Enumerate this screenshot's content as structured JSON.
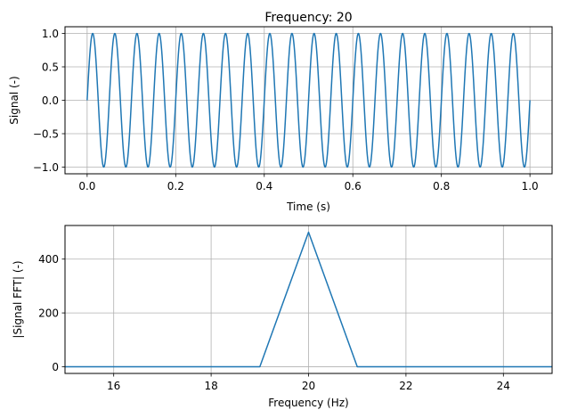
{
  "chart_data": [
    {
      "type": "line",
      "title": "Frequency: 20",
      "xlabel": "Time (s)",
      "ylabel": "Signal (-)",
      "xlim": [
        -0.05,
        1.05
      ],
      "ylim": [
        -1.1,
        1.1
      ],
      "xticks": [
        0.0,
        0.2,
        0.4,
        0.6,
        0.8,
        1.0
      ],
      "xtick_labels": [
        "0.0",
        "0.2",
        "0.4",
        "0.6",
        "0.8",
        "1.0"
      ],
      "yticks": [
        -1.0,
        -0.5,
        0.0,
        0.5,
        1.0
      ],
      "ytick_labels": [
        "−1.0",
        "−0.5",
        "0.0",
        "0.5",
        "1.0"
      ],
      "grid": true,
      "series": [
        {
          "function": "sin(2*pi*20*t)",
          "t_start": 0.0,
          "t_end": 1.0,
          "samples": 1000,
          "color": "#1f77b4"
        }
      ]
    },
    {
      "type": "line",
      "title": "",
      "xlabel": "Frequency (Hz)",
      "ylabel": "|Signal FFT| (-)",
      "xlim": [
        15,
        25
      ],
      "ylim": [
        -25,
        525
      ],
      "xticks": [
        16,
        18,
        20,
        22,
        24
      ],
      "xtick_labels": [
        "16",
        "18",
        "20",
        "22",
        "24"
      ],
      "yticks": [
        0,
        200,
        400
      ],
      "ytick_labels": [
        "0",
        "200",
        "400"
      ],
      "grid": true,
      "series": [
        {
          "x": [
            15,
            16,
            17,
            18,
            19,
            20,
            21,
            22,
            23,
            24,
            25
          ],
          "y": [
            0,
            0,
            0,
            0,
            0,
            500,
            0,
            0,
            0,
            0,
            0
          ],
          "color": "#1f77b4"
        }
      ]
    }
  ]
}
